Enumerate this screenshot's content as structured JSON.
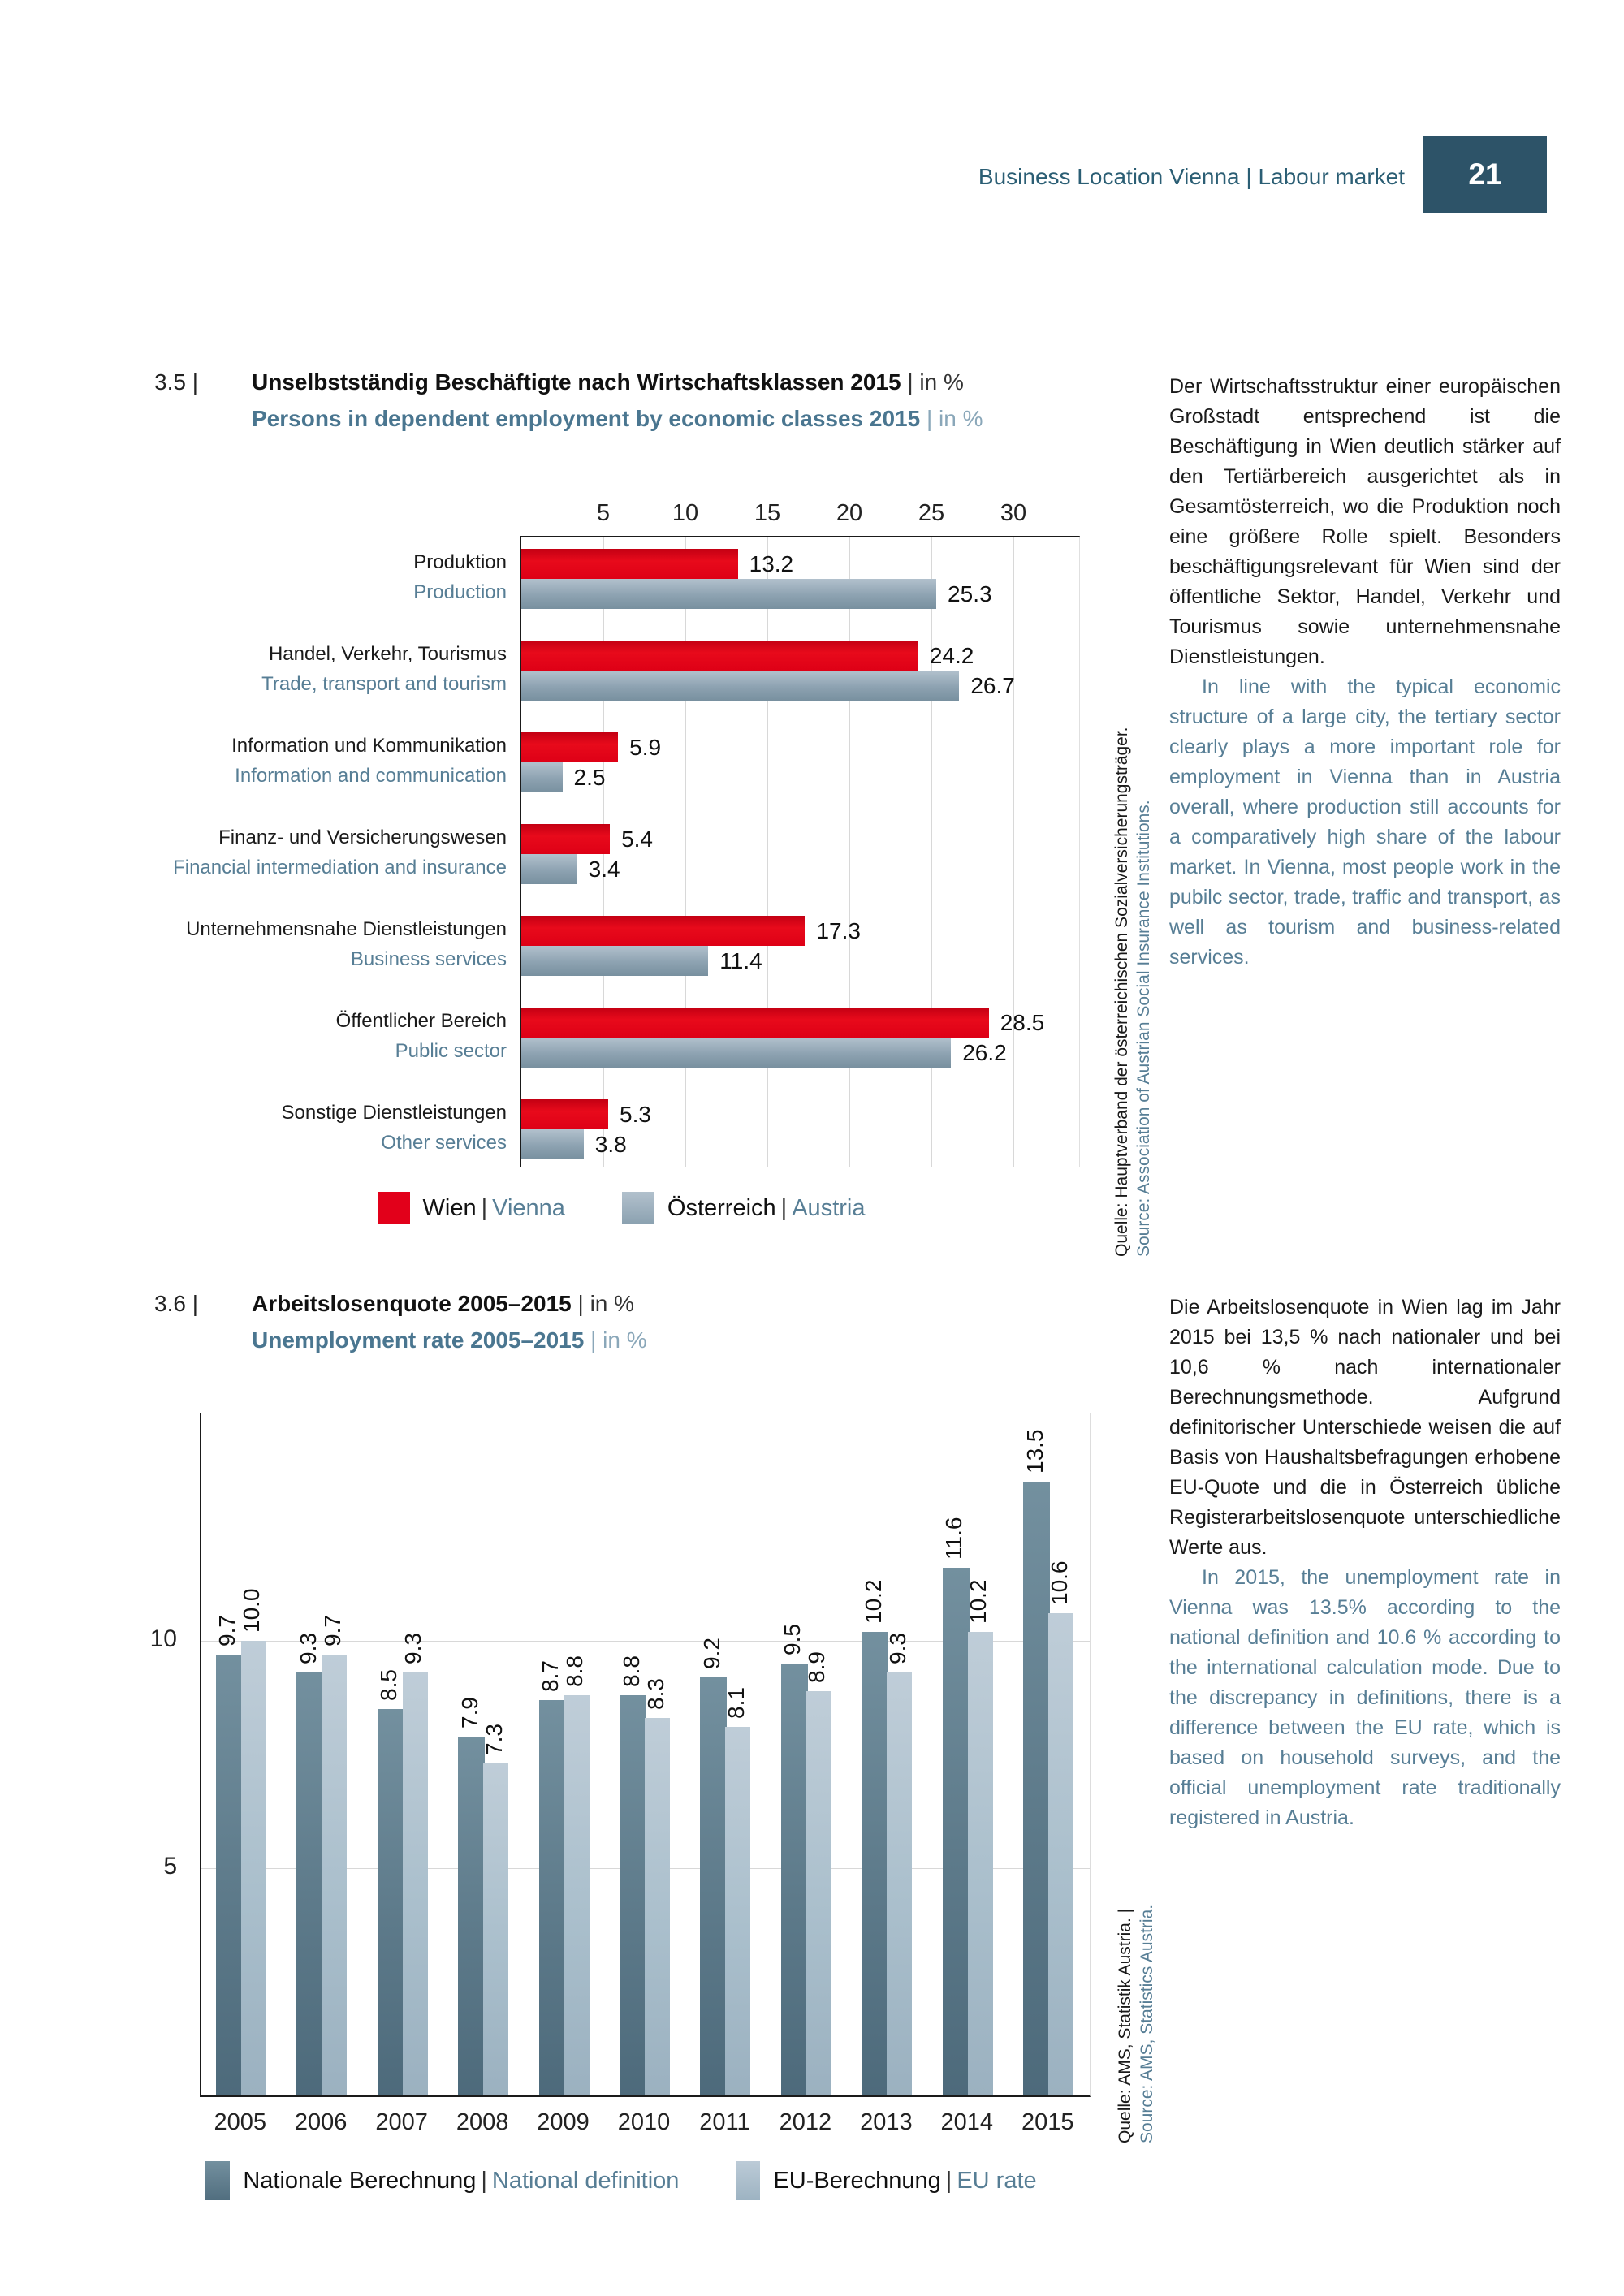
{
  "header": {
    "title": "Business Location Vienna | Labour market",
    "page_number": "21"
  },
  "colors": {
    "accent_red": "#e2001a",
    "austria_gray_blue": "#8da2b1",
    "national_dark": "#5d7a8a",
    "eu_light": "#aabfcc",
    "header_teal": "#2b5e74",
    "page_box": "#2d5368",
    "english_text_blue": "#577e95"
  },
  "chart1": {
    "number": "3.5 |",
    "title_de": "Unselbstständig Beschäftigte nach Wirtschaftsklassen 2015",
    "unit_suffix": "| in %",
    "title_en": "Persons in dependent employment by economic classes 2015",
    "axis_ticks": [
      "5",
      "10",
      "15",
      "20",
      "25",
      "30"
    ],
    "categories": [
      {
        "de": "Produktion",
        "en": "Production",
        "wien": "13.2",
        "austria": "25.3"
      },
      {
        "de": "Handel, Verkehr, Tourismus",
        "en": "Trade, transport and tourism",
        "wien": "24.2",
        "austria": "26.7"
      },
      {
        "de": "Information und Kommunikation",
        "en": "Information and communication",
        "wien": "5.9",
        "austria": "2.5"
      },
      {
        "de": "Finanz- und Versicherungswesen",
        "en": "Financial intermediation and insurance",
        "wien": "5.4",
        "austria": "3.4"
      },
      {
        "de": "Unternehmensnahe Dienstleistungen",
        "en": "Business services",
        "wien": "17.3",
        "austria": "11.4"
      },
      {
        "de": "Öffentlicher Bereich",
        "en": "Public sector",
        "wien": "28.5",
        "austria": "26.2"
      },
      {
        "de": "Sonstige Dienstleistungen",
        "en": "Other services",
        "wien": "5.3",
        "austria": "3.8"
      }
    ],
    "legend": {
      "wien_de": "Wien",
      "wien_en": "Vienna",
      "sep": "|",
      "at_de": "Österreich",
      "at_en": "Austria"
    },
    "source_de": "Quelle: Hauptverband der österreichischen Sozialversicherungsträger.",
    "source_en": "Source: Association of Austrian Social Insurance Institutions."
  },
  "paragraph1": {
    "de": "Der Wirtschaftsstruktur einer europäischen Großstadt entsprechend ist die Beschäftigung in Wien deutlich stärker auf den Tertiärbereich ausgerichtet als in Gesamtösterreich, wo die Produktion noch eine größere Rolle spielt. Besonders beschäftigungsrelevant für Wien sind der öffentliche Sektor, Handel, Verkehr und Tourismus sowie unternehmensnahe Dienstleistungen.",
    "en": "In line with the typical economic structure of a large city, the tertiary sector clearly plays a more important role for employment in Vienna than in Austria overall, where production still accounts for a comparatively high share of the labour market. In Vienna, most people work in the pubilc sector, trade, traffic and transport, as well as tourism and business-related services."
  },
  "chart2": {
    "number": "3.6 |",
    "title_de": "Arbeitslosenquote 2005–2015",
    "unit_suffix": "| in %",
    "title_en": "Unemployment rate 2005–2015",
    "y_ticks": [
      {
        "value": 10,
        "label": "10"
      },
      {
        "value": 5,
        "label": "5"
      }
    ],
    "y_max": 15,
    "years": [
      "2005",
      "2006",
      "2007",
      "2008",
      "2009",
      "2010",
      "2011",
      "2012",
      "2013",
      "2014",
      "2015"
    ],
    "national": [
      "9.7",
      "9.3",
      "8.5",
      "7.9",
      "8.7",
      "8.8",
      "9.2",
      "9.5",
      "10.2",
      "11.6",
      "13.5"
    ],
    "eu": [
      "10.0",
      "9.7",
      "9.3",
      "7.3",
      "8.8",
      "8.3",
      "8.1",
      "8.9",
      "9.3",
      "10.2",
      "10.6"
    ],
    "legend": {
      "nat_de": "Nationale Berechnung",
      "nat_en": "National definition",
      "sep": "|",
      "eu_de": "EU-Berechnung",
      "eu_en": "EU rate"
    },
    "source_de": "Quelle: AMS, Statistik Austria. |",
    "source_en": "Source: AMS, Statistics Austria."
  },
  "paragraph2": {
    "de": "Die Arbeitslosenquote in Wien lag im Jahr 2015 bei 13,5 % nach nationaler und bei 10,6 % nach internationaler Berechnungsmethode. Aufgrund definitorischer Unterschiede weisen die auf Basis von Haushaltsbefragungen erhobene EU-Quote und die in Österreich übliche Registerarbeitslosenquote unterschiedliche Werte aus.",
    "en": "In 2015, the unemployment rate in Vienna was 13.5% according to the national definition and 10.6 % according to the international calculation mode. Due to the discrepancy in definitions, there is a difference between the EU rate, which is based on household surveys, and the official unemployment rate traditionally registered in Austria."
  },
  "chart_data": [
    {
      "type": "bar",
      "orientation": "horizontal",
      "title": "Unselbstständig Beschäftigte nach Wirtschaftsklassen 2015 | in %",
      "subtitle": "Persons in dependent employment by economic classes 2015 | in %",
      "categories": [
        "Produktion / Production",
        "Handel, Verkehr, Tourismus / Trade, transport and tourism",
        "Information und Kommunikation / Information and communication",
        "Finanz- und Versicherungswesen / Financial intermediation and insurance",
        "Unternehmensnahe Dienstleistungen / Business services",
        "Öffentlicher Bereich / Public sector",
        "Sonstige Dienstleistungen / Other services"
      ],
      "series": [
        {
          "name": "Wien | Vienna",
          "values": [
            13.2,
            24.2,
            5.9,
            5.4,
            17.3,
            28.5,
            5.3
          ]
        },
        {
          "name": "Österreich | Austria",
          "values": [
            25.3,
            26.7,
            2.5,
            3.4,
            11.4,
            26.2,
            3.8
          ]
        }
      ],
      "xlim": [
        0,
        34
      ],
      "x_ticks": [
        5,
        10,
        15,
        20,
        25,
        30
      ],
      "grid": true,
      "legend_position": "bottom"
    },
    {
      "type": "bar",
      "orientation": "vertical",
      "title": "Arbeitslosenquote 2005–2015 | in %",
      "subtitle": "Unemployment rate 2005–2015 | in %",
      "categories": [
        "2005",
        "2006",
        "2007",
        "2008",
        "2009",
        "2010",
        "2011",
        "2012",
        "2013",
        "2014",
        "2015"
      ],
      "series": [
        {
          "name": "Nationale Berechnung | National definition",
          "values": [
            9.7,
            9.3,
            8.5,
            7.9,
            8.7,
            8.8,
            9.2,
            9.5,
            10.2,
            11.6,
            13.5
          ]
        },
        {
          "name": "EU-Berechnung | EU rate",
          "values": [
            10.0,
            9.7,
            9.3,
            7.3,
            8.8,
            8.3,
            8.1,
            8.9,
            9.3,
            10.2,
            10.6
          ]
        }
      ],
      "ylim": [
        0,
        15
      ],
      "y_ticks": [
        5,
        10
      ],
      "grid": true,
      "legend_position": "bottom"
    }
  ]
}
